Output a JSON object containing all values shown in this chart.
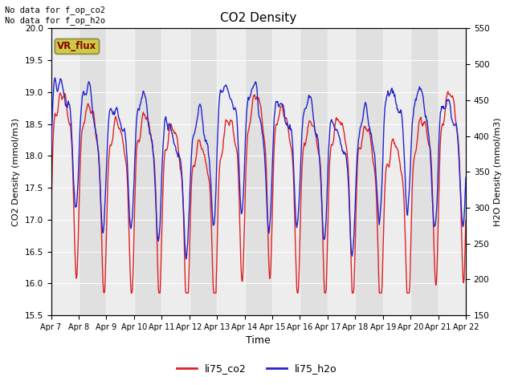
{
  "title": "CO2 Density",
  "xlabel": "Time",
  "ylabel_left": "CO2 Density (mmol/m3)",
  "ylabel_right": "H2O Density (mmol/m3)",
  "annotation_top": "No data for f_op_co2\nNo data for f_op_h2o",
  "legend_box_text": "VR_flux",
  "legend_box_facecolor": "#cccc44",
  "legend_box_edgecolor": "#888844",
  "legend_box_textcolor": "#880000",
  "ylim_left": [
    15.5,
    20.0
  ],
  "ylim_right": [
    150,
    550
  ],
  "yticks_left": [
    15.5,
    16.0,
    16.5,
    17.0,
    17.5,
    18.0,
    18.5,
    19.0,
    19.5,
    20.0
  ],
  "yticks_right": [
    150,
    200,
    250,
    300,
    350,
    400,
    450,
    500,
    550
  ],
  "xtick_labels": [
    "Apr 7",
    "Apr 8",
    "Apr 9",
    "Apr 10",
    "Apr 11",
    "Apr 12",
    "Apr 13",
    "Apr 14",
    "Apr 15",
    "Apr 16",
    "Apr 17",
    "Apr 18",
    "Apr 19",
    "Apr 20",
    "Apr 21",
    "Apr 22"
  ],
  "co2_color": "#dd2222",
  "h2o_color": "#2222cc",
  "background_color": "#ffffff",
  "plot_bg_color": "#e0e0e0",
  "band_color": "#cccccc",
  "legend_co2": "li75_co2",
  "legend_h2o": "li75_h2o",
  "linewidth": 1.0,
  "n_days": 15,
  "figsize": [
    6.4,
    4.8
  ],
  "dpi": 100
}
